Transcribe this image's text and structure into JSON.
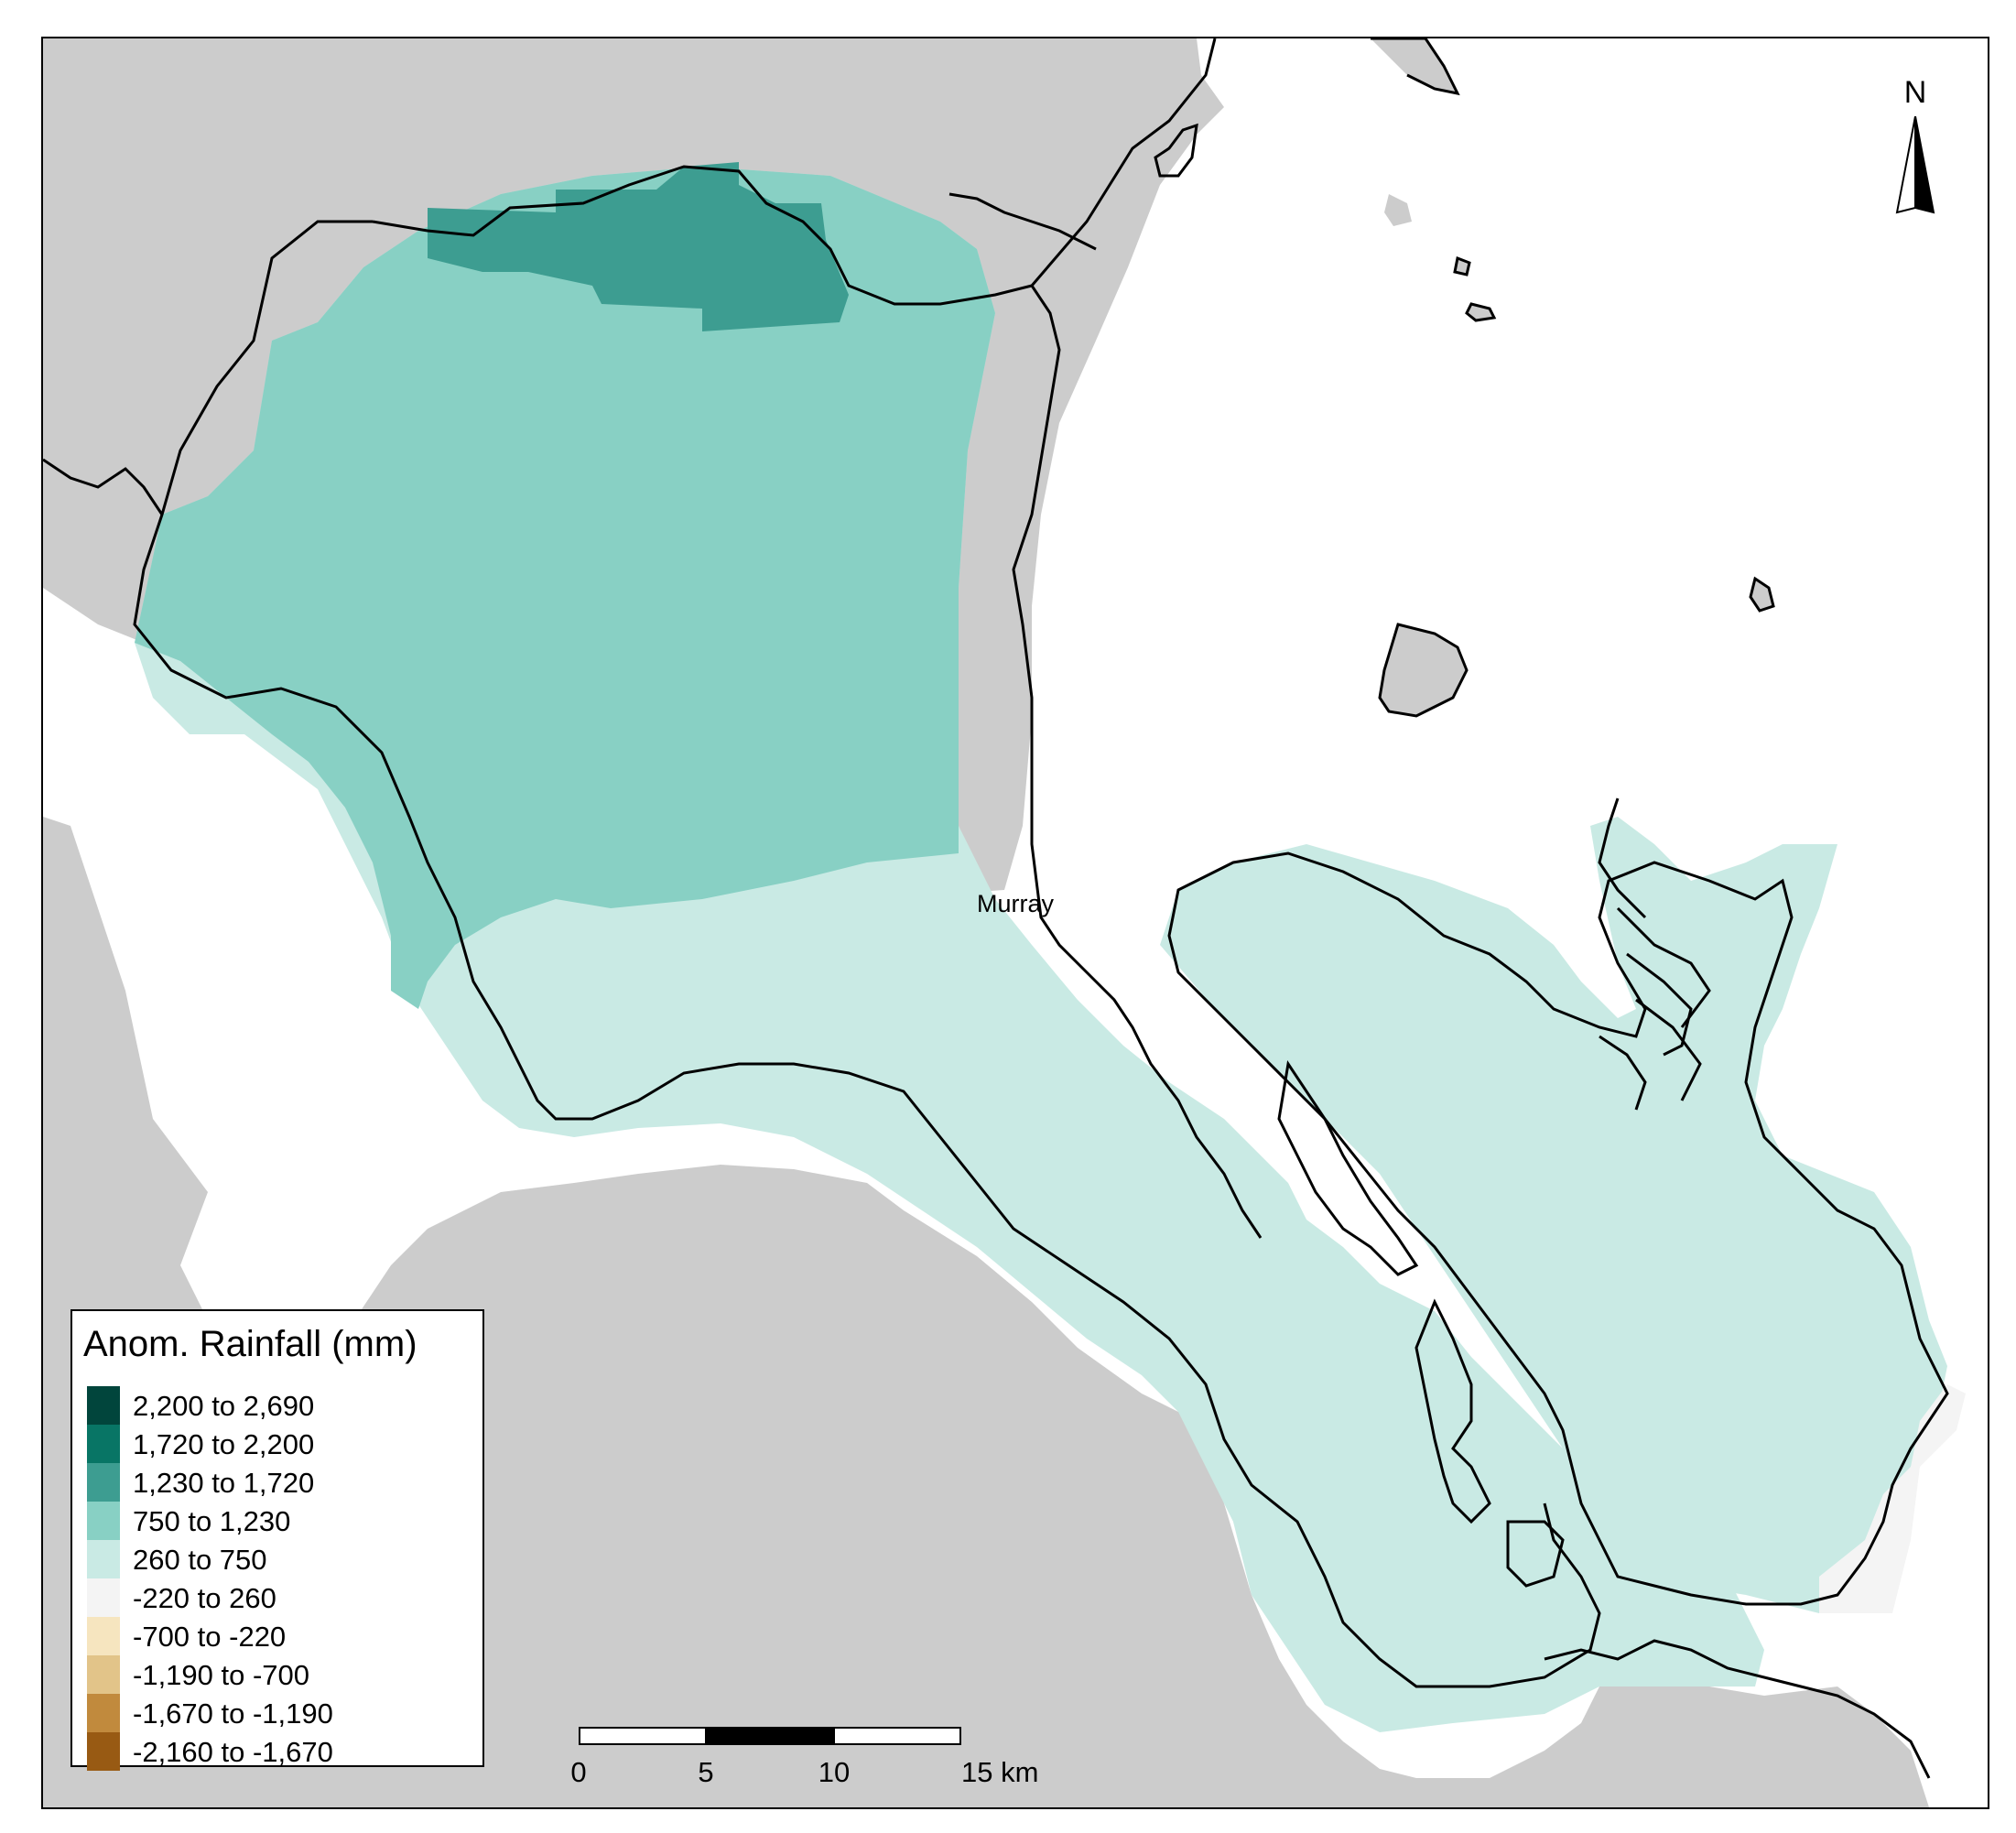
{
  "map": {
    "town_label": "Murray",
    "north_label": "N",
    "colors": {
      "land_grey": "#cccccc",
      "sea": "#ffffff",
      "coastline": "#000000"
    }
  },
  "legend": {
    "title": "Anom. Rainfall (mm)",
    "items": [
      {
        "label": "2,200 to 2,690",
        "color": "#01453c"
      },
      {
        "label": "1,720 to 2,200",
        "color": "#087565"
      },
      {
        "label": "1,230 to 1,720",
        "color": "#3d9d91"
      },
      {
        "label": "750 to 1,230",
        "color": "#88d0c4"
      },
      {
        "label": "260 to 750",
        "color": "#c9eae4"
      },
      {
        "label": "-220 to 260",
        "color": "#f4f4f4"
      },
      {
        "label": "-700 to -220",
        "color": "#f6e5bf"
      },
      {
        "label": "-1,190 to -700",
        "color": "#e2c489"
      },
      {
        "label": "-1,670 to -1,190",
        "color": "#c18a3d"
      },
      {
        "label": "-2,160 to -1,670",
        "color": "#985a13"
      }
    ]
  },
  "scale_bar": {
    "ticks": [
      "0",
      "5",
      "10",
      "15 km"
    ]
  }
}
